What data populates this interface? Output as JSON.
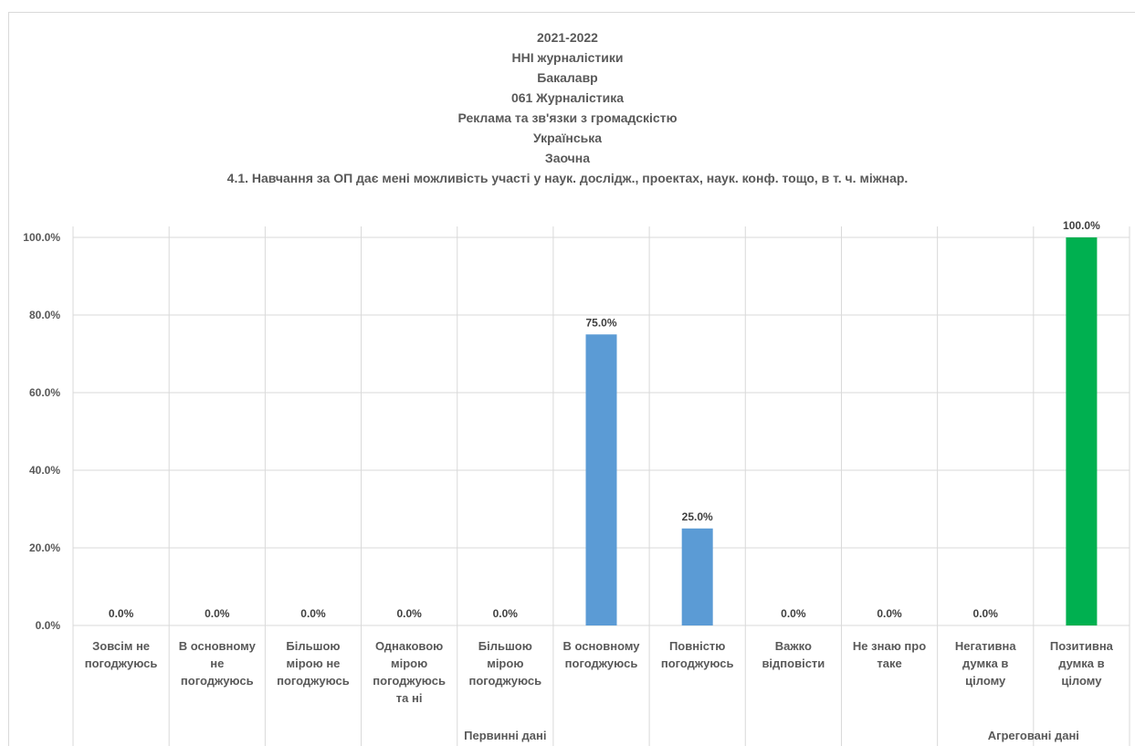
{
  "chart_data": {
    "type": "bar",
    "title_lines": [
      "2021-2022",
      "ННІ журналістики",
      "Бакалавр",
      "061 Журналістика",
      "Реклама та зв'язки з громадскістю",
      "Українська",
      "Заочна",
      "4.1. Навчання за ОП дає мені можливість участі у наук. дослідж., проектах, наук. конф. тощо, в т. ч. міжнар."
    ],
    "categories": [
      [
        "Зовсім не",
        "погоджуюсь"
      ],
      [
        "В основному",
        "не",
        "погоджуюсь"
      ],
      [
        "Більшою",
        "мірою не",
        "погоджуюсь"
      ],
      [
        "Однаковою",
        "мірою",
        "погоджуюсь",
        "та ні"
      ],
      [
        "Більшою",
        "мірою",
        "погоджуюсь"
      ],
      [
        "В основному",
        "погоджуюсь"
      ],
      [
        "Повністю",
        "погоджуюсь"
      ],
      [
        "Важко",
        "відповісти"
      ],
      [
        "Не знаю про",
        "таке"
      ],
      [
        "Негативна",
        "думка в",
        "цілому"
      ],
      [
        "Позитивна",
        "думка в",
        "цілому"
      ]
    ],
    "values": [
      0,
      0,
      0,
      0,
      0,
      75,
      25,
      0,
      0,
      0,
      100
    ],
    "value_labels": [
      "0.0%",
      "0.0%",
      "0.0%",
      "0.0%",
      "0.0%",
      "75.0%",
      "25.0%",
      "0.0%",
      "0.0%",
      "0.0%",
      "100.0%"
    ],
    "bar_colors": [
      "#5b9bd5",
      "#5b9bd5",
      "#5b9bd5",
      "#5b9bd5",
      "#5b9bd5",
      "#5b9bd5",
      "#5b9bd5",
      "#5b9bd5",
      "#5b9bd5",
      "#00b050",
      "#00b050"
    ],
    "groups": [
      {
        "label": "Первинні дані",
        "start": 0,
        "end": 8
      },
      {
        "label": "Агреговані дані",
        "start": 9,
        "end": 10
      }
    ],
    "yticks": [
      "0.0%",
      "20.0%",
      "40.0%",
      "60.0%",
      "80.0%",
      "100.0%"
    ],
    "ylim": [
      0,
      100
    ],
    "grid": true,
    "gridline_color": "#d9d9d9"
  }
}
